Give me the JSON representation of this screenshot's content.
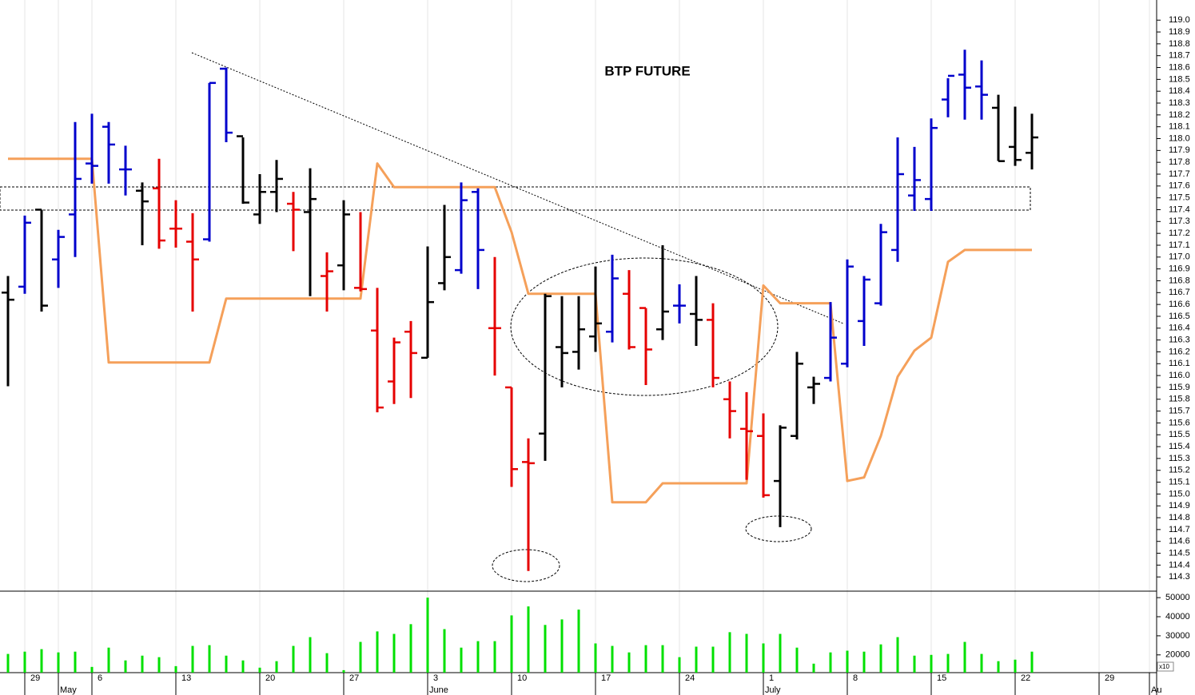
{
  "chart_data": {
    "type": "ohlc",
    "title": "BTP FUTURE",
    "categories": [
      null,
      "29",
      null,
      null,
      null,
      "6",
      null,
      null,
      null,
      null,
      "13",
      null,
      null,
      null,
      null,
      "20",
      null,
      null,
      null,
      null,
      "27",
      null,
      null,
      null,
      null,
      "3",
      null,
      null,
      null,
      null,
      "10",
      null,
      null,
      null,
      null,
      "17",
      null,
      null,
      null,
      null,
      "24",
      null,
      null,
      null,
      null,
      "1",
      null,
      null,
      null,
      null,
      "8",
      null,
      null,
      null,
      null,
      "15",
      null,
      null,
      null,
      null,
      "22",
      null,
      null,
      null,
      null,
      "29",
      null,
      null,
      null
    ],
    "months": [
      null,
      null,
      null,
      "May",
      null,
      null,
      null,
      null,
      null,
      null,
      null,
      null,
      null,
      null,
      null,
      null,
      null,
      null,
      null,
      null,
      null,
      null,
      null,
      null,
      null,
      "June",
      null,
      null,
      null,
      null,
      null,
      null,
      null,
      null,
      null,
      null,
      null,
      null,
      null,
      null,
      null,
      null,
      null,
      null,
      null,
      "July",
      null,
      null,
      null,
      null,
      null,
      null,
      null,
      null,
      null,
      null,
      null,
      null,
      null,
      null,
      null,
      null,
      null,
      null,
      null,
      null,
      null,
      null,
      "Au"
    ],
    "open": [
      116.7,
      116.75,
      117.4,
      116.98,
      117.36,
      117.79,
      118.1,
      117.74,
      117.56,
      117.58,
      117.24,
      117.13,
      117.15,
      118.59,
      118.02,
      117.36,
      117.55,
      117.45,
      117.38,
      116.84,
      116.93,
      116.74,
      116.38,
      115.95,
      116.37,
      116.15,
      116.78,
      116.89,
      117.55,
      116.4,
      115.9,
      115.27,
      115.51,
      116.24,
      116.2,
      116.33,
      116.37,
      116.69,
      116.57,
      116.39,
      116.59,
      116.52,
      116.47,
      115.8,
      115.55,
      115.49,
      115.11,
      115.49,
      115.9,
      115.98,
      116.1,
      116.46,
      116.61,
      117.06,
      117.52,
      117.49,
      118.33,
      118.54,
      118.44,
      118.26,
      117.93,
      117.88,
      null,
      null,
      null,
      null,
      null,
      null,
      null
    ],
    "high": [
      116.84,
      117.35,
      117.4,
      117.23,
      118.14,
      118.21,
      118.14,
      117.94,
      117.63,
      117.83,
      117.48,
      117.37,
      118.47,
      118.6,
      118.01,
      117.7,
      117.82,
      117.55,
      117.75,
      117.04,
      117.48,
      117.38,
      116.74,
      116.32,
      116.46,
      117.09,
      117.44,
      117.63,
      117.58,
      117.0,
      115.9,
      115.47,
      116.69,
      116.67,
      116.67,
      116.92,
      117.02,
      116.89,
      116.57,
      117.1,
      116.77,
      116.84,
      116.61,
      115.95,
      115.86,
      115.68,
      115.58,
      116.2,
      115.99,
      116.62,
      116.98,
      116.84,
      117.28,
      118.01,
      117.93,
      118.17,
      118.51,
      118.75,
      118.66,
      118.37,
      118.27,
      118.21,
      null,
      null,
      null,
      null,
      null,
      null,
      null
    ],
    "low": [
      115.91,
      116.69,
      116.54,
      116.74,
      117.0,
      117.62,
      117.62,
      117.52,
      117.1,
      117.07,
      117.08,
      116.54,
      117.13,
      117.97,
      117.45,
      117.28,
      117.38,
      117.05,
      116.67,
      116.54,
      116.72,
      116.71,
      115.69,
      115.76,
      115.81,
      116.15,
      116.72,
      116.86,
      116.73,
      116.0,
      115.06,
      114.35,
      115.28,
      115.9,
      116.05,
      116.2,
      116.28,
      116.22,
      115.92,
      116.3,
      116.44,
      116.25,
      115.9,
      115.47,
      115.12,
      114.97,
      114.72,
      115.46,
      115.76,
      115.95,
      116.07,
      116.25,
      116.59,
      116.96,
      117.39,
      117.39,
      118.18,
      118.16,
      118.16,
      117.81,
      117.77,
      117.74,
      null,
      null,
      null,
      null,
      null,
      null,
      null
    ],
    "close": [
      116.64,
      117.29,
      116.59,
      117.17,
      117.66,
      117.77,
      117.95,
      117.74,
      117.47,
      117.14,
      117.24,
      116.98,
      118.47,
      118.05,
      117.46,
      117.55,
      117.66,
      117.4,
      117.49,
      116.88,
      117.36,
      116.73,
      115.73,
      116.28,
      116.19,
      116.62,
      117.0,
      117.48,
      117.06,
      116.4,
      115.21,
      115.26,
      116.67,
      116.19,
      116.39,
      116.44,
      116.82,
      116.24,
      116.22,
      116.54,
      116.59,
      116.47,
      115.98,
      115.7,
      115.53,
      114.99,
      115.56,
      116.1,
      115.93,
      116.32,
      116.92,
      116.81,
      117.21,
      117.7,
      117.65,
      118.09,
      118.53,
      118.43,
      118.37,
      117.81,
      117.82,
      118.01,
      null,
      null,
      null,
      null,
      null,
      null,
      null
    ],
    "bar_colors": [
      "#000000",
      "#0000cc",
      "#000000",
      "#0000cc",
      "#0000cc",
      "#0000cc",
      "#0000cc",
      "#0000cc",
      "#000000",
      "#e60000",
      "#e60000",
      "#e60000",
      "#0000cc",
      "#0000cc",
      "#000000",
      "#000000",
      "#000000",
      "#e60000",
      "#000000",
      "#e60000",
      "#000000",
      "#e60000",
      "#e60000",
      "#e60000",
      "#e60000",
      "#000000",
      "#000000",
      "#0000cc",
      "#0000cc",
      "#e60000",
      "#e60000",
      "#e60000",
      "#000000",
      "#000000",
      "#000000",
      "#000000",
      "#0000cc",
      "#e60000",
      "#e60000",
      "#000000",
      "#0000cc",
      "#000000",
      "#e60000",
      "#e60000",
      "#e60000",
      "#e60000",
      "#000000",
      "#000000",
      "#000000",
      "#0000cc",
      "#0000cc",
      "#0000cc",
      "#0000cc",
      "#0000cc",
      "#0000cc",
      "#0000cc",
      "#0000cc",
      "#0000cc",
      "#0000cc",
      "#000000",
      "#000000",
      "#000000",
      null,
      null,
      null,
      null,
      null,
      null,
      null
    ],
    "signal_line": {
      "color": "#f5a05a",
      "values": [
        117.83,
        117.83,
        117.83,
        117.83,
        117.83,
        117.83,
        116.11,
        116.11,
        116.11,
        116.11,
        116.11,
        116.11,
        116.11,
        116.65,
        116.65,
        116.65,
        116.65,
        116.65,
        116.65,
        116.65,
        116.65,
        116.65,
        117.79,
        117.59,
        117.59,
        117.59,
        117.59,
        117.59,
        117.59,
        117.59,
        117.21,
        116.69,
        116.69,
        116.69,
        116.69,
        116.69,
        114.93,
        114.93,
        114.93,
        115.09,
        115.09,
        115.09,
        115.09,
        115.09,
        115.09,
        116.76,
        116.61,
        116.61,
        116.61,
        116.61,
        115.11,
        115.14,
        115.49,
        115.99,
        116.21,
        116.32,
        116.96,
        117.06,
        117.06,
        117.06,
        117.06,
        117.06,
        null,
        null,
        null,
        null,
        null,
        null,
        null
      ]
    },
    "ylim": [
      114.18,
      119.17
    ],
    "yticks": [
      {
        "value": 119,
        "label": "119.0"
      },
      118.9,
      118.8,
      118.7,
      118.6,
      118.5,
      118.4,
      118.3,
      118.2,
      118.1,
      {
        "value": 118,
        "label": "118.0"
      },
      117.9,
      117.8,
      117.7,
      117.6,
      117.5,
      117.4,
      117.3,
      117.2,
      117.1,
      {
        "value": 117,
        "label": "117.0"
      },
      116.9,
      116.8,
      116.7,
      116.6,
      116.5,
      116.4,
      116.3,
      116.2,
      116.1,
      {
        "value": 116,
        "label": "116.0"
      },
      115.9,
      115.8,
      115.7,
      115.6,
      115.5,
      115.4,
      115.3,
      115.2,
      115.1,
      {
        "value": 115,
        "label": "115.0"
      },
      114.9,
      114.8,
      114.7,
      114.6,
      114.5,
      114.4,
      114.3
    ],
    "volume": {
      "color": "#00e000",
      "multiplier_label": "x10",
      "values": [
        20500,
        21700,
        23000,
        21300,
        21700,
        13700,
        23800,
        17100,
        19600,
        18800,
        14100,
        24700,
        25100,
        19600,
        17100,
        13300,
        16700,
        24700,
        29300,
        20900,
        12000,
        26800,
        32300,
        31000,
        36100,
        50000,
        33500,
        23800,
        27200,
        27200,
        40700,
        45400,
        35700,
        38600,
        43700,
        26000,
        24700,
        21300,
        25100,
        25100,
        18800,
        24300,
        24300,
        31900,
        31000,
        26000,
        31000,
        23800,
        15400,
        21300,
        22200,
        21700,
        25500,
        29300,
        19600,
        20000,
        20500,
        26800,
        20500,
        16700,
        17500,
        21700,
        null,
        null,
        null,
        null,
        null,
        null,
        null
      ],
      "ylim": [
        10700,
        53400
      ],
      "yticks": [
        50000,
        40000,
        30000,
        20000
      ]
    }
  }
}
